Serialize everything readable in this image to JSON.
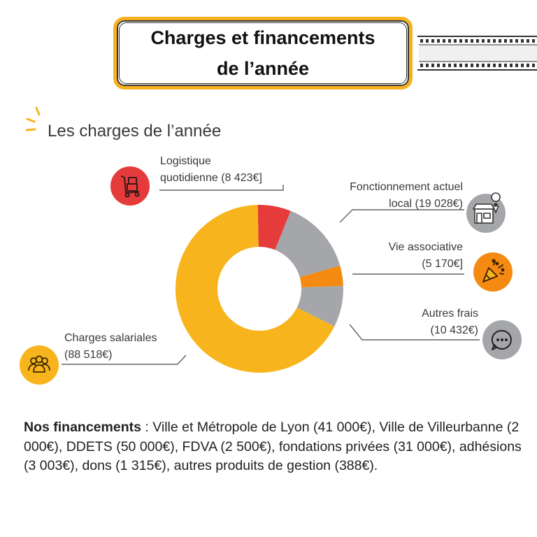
{
  "header": {
    "title_line1": "Charges et financements",
    "title_line2": "de l’année"
  },
  "section": {
    "title": "Les charges de l’année"
  },
  "chart_data": {
    "type": "pie",
    "style": "donut",
    "slices": [
      {
        "key": "logistique",
        "label": "Logistique quotidienne (8 423€)",
        "value": 8423,
        "color": "#E63B3B"
      },
      {
        "key": "fonctionnement",
        "label": "Fonctionnement actuel local (19 028€)",
        "value": 19028,
        "color": "#A5A6AA"
      },
      {
        "key": "vie",
        "label": "Vie associative (5 170€)",
        "value": 5170,
        "color": "#F58A12"
      },
      {
        "key": "autres",
        "label": "Autres frais (10 432€)",
        "value": 10432,
        "color": "#A5A6AA"
      },
      {
        "key": "salaires",
        "label": "Charges salariales (88 518€)",
        "value": 88518,
        "color": "#F8B41C"
      }
    ]
  },
  "labels": {
    "logistique": {
      "line1": "Logistique",
      "line2": "quotidienne (8 423€]"
    },
    "fonctionnement": {
      "line1": "Fonctionnement actuel",
      "line2": "local (19 028€)"
    },
    "vie": {
      "line1": "Vie associative",
      "line2": "(5 170€]"
    },
    "autres": {
      "line1": "Autres frais",
      "line2": "(10 432€)"
    },
    "salaires": {
      "line1": "Charges salariales",
      "line2": "(88 518€)"
    }
  },
  "icons": {
    "logistique": {
      "name": "hand-truck-icon",
      "color": "#E63B3B"
    },
    "fonctionnement": {
      "name": "storefront-location-icon",
      "color": "#A5A6AA"
    },
    "vie": {
      "name": "party-popper-icon",
      "color": "#F58A12"
    },
    "autres": {
      "name": "more-dots-icon",
      "color": "#A5A6AA"
    },
    "salaires": {
      "name": "people-group-icon",
      "color": "#F8B41C"
    }
  },
  "financing": {
    "heading": "Nos financements",
    "text": " : Ville et Métropole de Lyon (41 000€), Ville de Villeurbanne (2 000€), DDETS (50 000€), FDVA (2 500€), fondations privées (31 000€), adhésions (3 003€), dons (1 315€), autres produits de gestion (388€)."
  },
  "accent_color": "#F6B21E"
}
